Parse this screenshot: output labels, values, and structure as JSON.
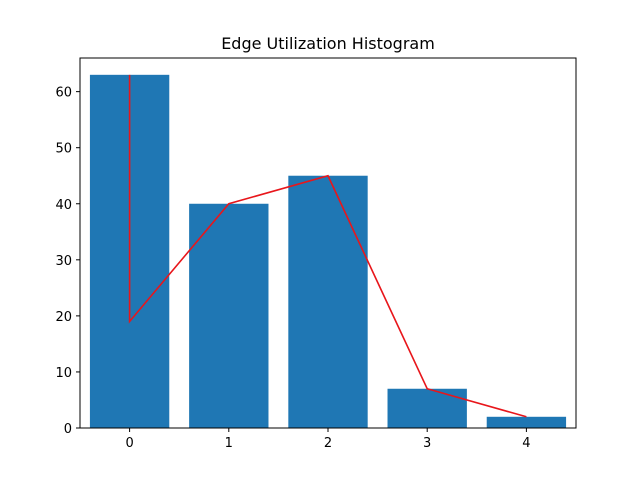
{
  "chart_data": {
    "type": "bar",
    "title": "Edge Utilization Histogram",
    "xlabel": "",
    "ylabel": "",
    "categories": [
      "0",
      "1",
      "2",
      "3",
      "4"
    ],
    "x": [
      0,
      1,
      2,
      3,
      4
    ],
    "series": [
      {
        "values": [
          63,
          40,
          45,
          7,
          2
        ]
      }
    ],
    "line": {
      "x": [
        0,
        0,
        1,
        2,
        3,
        4
      ],
      "y": [
        63,
        19,
        40,
        45,
        7,
        2
      ]
    },
    "xlim": [
      -0.5,
      4.5
    ],
    "ylim": [
      0,
      66
    ],
    "yticks": [
      0,
      10,
      20,
      30,
      40,
      50,
      60
    ],
    "grid": false,
    "colors": {
      "bar": "#1f77b4",
      "line": "#e8161b",
      "axis": "#000000"
    }
  }
}
